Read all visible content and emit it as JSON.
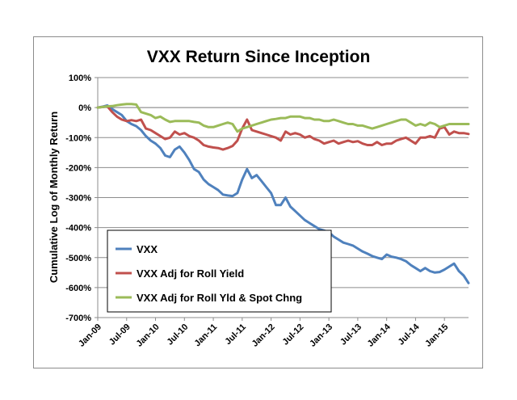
{
  "chart_data": {
    "type": "line",
    "title": "VXX Return Since Inception",
    "xlabel": "",
    "ylabel": "Cumulative Log of Monthly Return",
    "ylim": [
      -700,
      100
    ],
    "y_ticks": [
      "100%",
      "0%",
      "-100%",
      "-200%",
      "-300%",
      "-400%",
      "-500%",
      "-600%",
      "-700%"
    ],
    "y_tick_values": [
      100,
      0,
      -100,
      -200,
      -300,
      -400,
      -500,
      -600,
      -700
    ],
    "x_ticks": [
      "Jan-09",
      "Jul-09",
      "Jan-10",
      "Jul-10",
      "Jan-11",
      "Jul-11",
      "Jan-12",
      "Jul-12",
      "Jan-13",
      "Jul-13",
      "Jan-14",
      "Jul-14",
      "Jan-15"
    ],
    "x_tick_index": [
      0,
      6,
      12,
      18,
      24,
      30,
      36,
      42,
      48,
      54,
      60,
      66,
      72
    ],
    "x_count": 78,
    "grid": "horizontal",
    "legend_position": "bottom-left",
    "series": [
      {
        "name": "VXX",
        "color": "#4f81bd",
        "values": [
          0,
          3,
          7,
          -5,
          -15,
          -25,
          -45,
          -55,
          -62,
          -75,
          -95,
          -110,
          -120,
          -135,
          -160,
          -165,
          -140,
          -130,
          -150,
          -175,
          -205,
          -215,
          -240,
          -255,
          -265,
          -275,
          -290,
          -293,
          -295,
          -285,
          -240,
          -205,
          -235,
          -225,
          -245,
          -265,
          -285,
          -325,
          -325,
          -300,
          -330,
          -345,
          -360,
          -375,
          -385,
          -395,
          -405,
          -410,
          -415,
          -430,
          -440,
          -450,
          -455,
          -460,
          -470,
          -480,
          -487,
          -495,
          -500,
          -505,
          -490,
          -497,
          -500,
          -505,
          -512,
          -525,
          -535,
          -545,
          -535,
          -545,
          -550,
          -548,
          -540,
          -530,
          -520,
          -545,
          -560,
          -585
        ]
      },
      {
        "name": "VXX Adj for Roll Yield",
        "color": "#c0504d",
        "values": [
          0,
          2,
          4,
          -15,
          -30,
          -40,
          -45,
          -42,
          -45,
          -40,
          -70,
          -75,
          -85,
          -95,
          -105,
          -100,
          -80,
          -90,
          -85,
          -95,
          -100,
          -110,
          -125,
          -130,
          -133,
          -135,
          -140,
          -135,
          -128,
          -110,
          -70,
          -40,
          -75,
          -80,
          -85,
          -90,
          -95,
          -100,
          -110,
          -80,
          -90,
          -85,
          -90,
          -100,
          -95,
          -105,
          -110,
          -120,
          -115,
          -110,
          -120,
          -115,
          -110,
          -115,
          -112,
          -120,
          -125,
          -125,
          -115,
          -125,
          -120,
          -120,
          -110,
          -105,
          -100,
          -110,
          -120,
          -100,
          -100,
          -95,
          -100,
          -70,
          -65,
          -90,
          -80,
          -85,
          -85,
          -88
        ]
      },
      {
        "name": "VXX Adj for Roll Yld & Spot Chng",
        "color": "#9bbb59",
        "values": [
          0,
          2,
          4,
          5,
          8,
          10,
          12,
          12,
          10,
          -15,
          -20,
          -25,
          -35,
          -30,
          -40,
          -48,
          -45,
          -45,
          -45,
          -45,
          -48,
          -50,
          -60,
          -65,
          -65,
          -60,
          -55,
          -50,
          -55,
          -80,
          -70,
          -65,
          -60,
          -55,
          -50,
          -45,
          -40,
          -38,
          -35,
          -35,
          -30,
          -30,
          -30,
          -35,
          -35,
          -40,
          -40,
          -45,
          -45,
          -40,
          -45,
          -50,
          -55,
          -55,
          -60,
          -60,
          -65,
          -70,
          -65,
          -60,
          -55,
          -50,
          -45,
          -40,
          -40,
          -50,
          -60,
          -55,
          -60,
          -50,
          -55,
          -65,
          -60,
          -55,
          -55,
          -55,
          -55,
          -55
        ]
      }
    ]
  }
}
